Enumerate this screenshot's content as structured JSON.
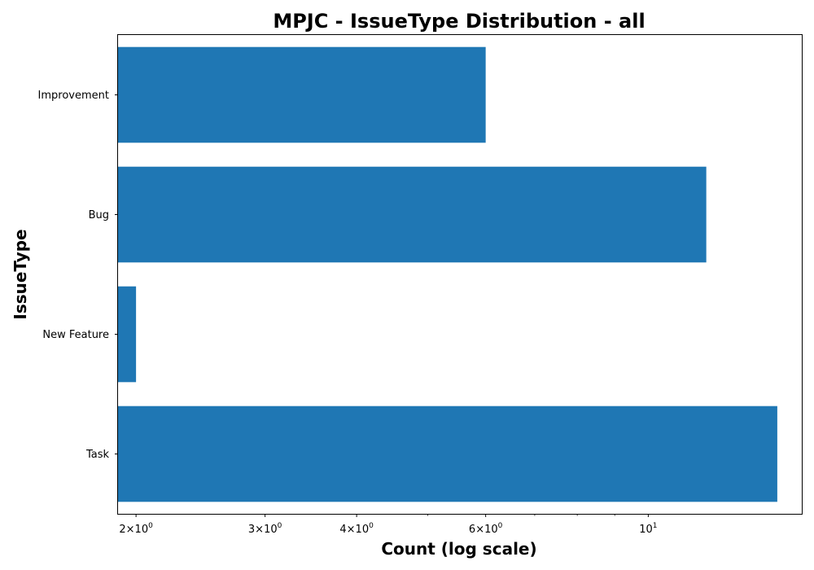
{
  "chart_data": {
    "type": "bar",
    "orientation": "horizontal",
    "title": "MPJC - IssueType Distribution - all",
    "xlabel": "Count (log scale)",
    "ylabel": "IssueType",
    "xscale": "log",
    "xlim": [
      1.89,
      16.2
    ],
    "categories": [
      "Improvement",
      "Bug",
      "New Feature",
      "Task"
    ],
    "values": [
      6,
      12,
      2,
      15
    ],
    "bar_color": "#1f77b4",
    "grid": false,
    "x_major_ticks": [
      {
        "value": 2,
        "base": "2",
        "exp": "0"
      },
      {
        "value": 3,
        "base": "3",
        "exp": "0"
      },
      {
        "value": 4,
        "base": "4",
        "exp": "0"
      },
      {
        "value": 6,
        "base": "6",
        "exp": "0"
      },
      {
        "value": 10,
        "base": "",
        "exp": "1"
      }
    ],
    "x_minor_ticks": [
      5,
      7,
      8,
      9
    ]
  }
}
